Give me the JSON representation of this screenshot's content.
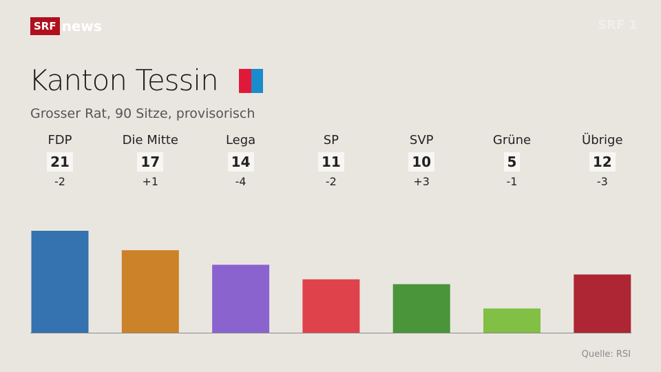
{
  "logo": {
    "srf": "SRF",
    "news": "news"
  },
  "watermark": "SRF 1",
  "title": "Kanton Tessin",
  "flag_colors": [
    "#e0193a",
    "#1a8ccc"
  ],
  "subtitle": "Grosser Rat, 90 Sitze, provisorisch",
  "source": "Quelle: RSI",
  "chart_data": {
    "type": "bar",
    "title": "Kanton Tessin",
    "subtitle": "Grosser Rat, 90 Sitze, provisorisch",
    "categories": [
      "FDP",
      "Die Mitte",
      "Lega",
      "SP",
      "SVP",
      "Grüne",
      "Übrige"
    ],
    "values": [
      21,
      17,
      14,
      11,
      10,
      5,
      12
    ],
    "changes": [
      "-2",
      "+1",
      "-4",
      "-2",
      "+3",
      "-1",
      "-3"
    ],
    "colors": [
      "#3572b0",
      "#cc8229",
      "#8a63cf",
      "#e0424b",
      "#4a9439",
      "#82bf45",
      "#ae2633"
    ],
    "ylim": [
      0,
      21
    ],
    "grid": false
  }
}
